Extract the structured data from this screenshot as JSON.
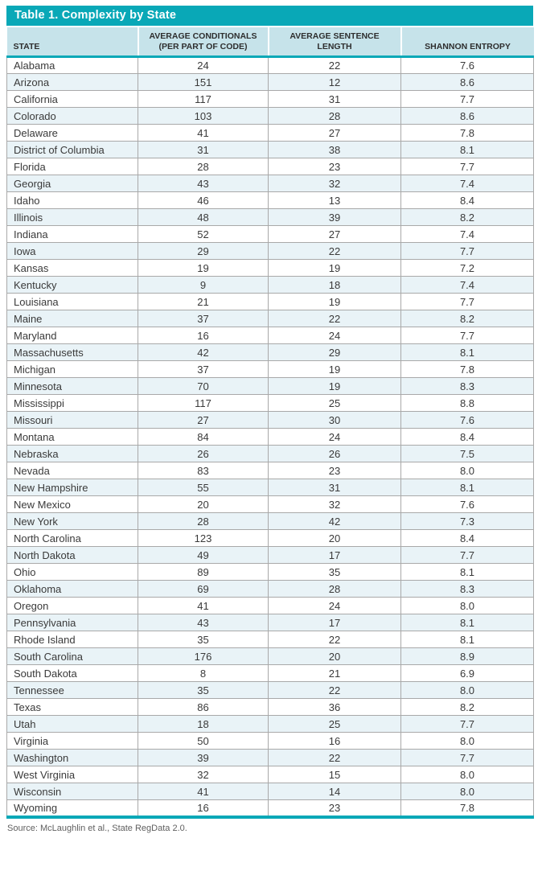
{
  "table": {
    "title": "Table 1. Complexity by State",
    "columns": [
      "STATE",
      "AVERAGE CONDITIONALS\n(PER PART OF CODE)",
      "AVERAGE SENTENCE LENGTH",
      "SHANNON ENTROPY"
    ],
    "rows": [
      {
        "state": "Alabama",
        "conditionals": "24",
        "sentence_length": "22",
        "entropy": "7.6"
      },
      {
        "state": "Arizona",
        "conditionals": "151",
        "sentence_length": "12",
        "entropy": "8.6"
      },
      {
        "state": "California",
        "conditionals": "117",
        "sentence_length": "31",
        "entropy": "7.7"
      },
      {
        "state": "Colorado",
        "conditionals": "103",
        "sentence_length": "28",
        "entropy": "8.6"
      },
      {
        "state": "Delaware",
        "conditionals": "41",
        "sentence_length": "27",
        "entropy": "7.8"
      },
      {
        "state": "District of Columbia",
        "conditionals": "31",
        "sentence_length": "38",
        "entropy": "8.1"
      },
      {
        "state": "Florida",
        "conditionals": "28",
        "sentence_length": "23",
        "entropy": "7.7"
      },
      {
        "state": "Georgia",
        "conditionals": "43",
        "sentence_length": "32",
        "entropy": "7.4"
      },
      {
        "state": "Idaho",
        "conditionals": "46",
        "sentence_length": "13",
        "entropy": "8.4"
      },
      {
        "state": "Illinois",
        "conditionals": "48",
        "sentence_length": "39",
        "entropy": "8.2"
      },
      {
        "state": "Indiana",
        "conditionals": "52",
        "sentence_length": "27",
        "entropy": "7.4"
      },
      {
        "state": "Iowa",
        "conditionals": "29",
        "sentence_length": "22",
        "entropy": "7.7"
      },
      {
        "state": "Kansas",
        "conditionals": "19",
        "sentence_length": "19",
        "entropy": "7.2"
      },
      {
        "state": "Kentucky",
        "conditionals": "9",
        "sentence_length": "18",
        "entropy": "7.4"
      },
      {
        "state": "Louisiana",
        "conditionals": "21",
        "sentence_length": "19",
        "entropy": "7.7"
      },
      {
        "state": "Maine",
        "conditionals": "37",
        "sentence_length": "22",
        "entropy": "8.2"
      },
      {
        "state": "Maryland",
        "conditionals": "16",
        "sentence_length": "24",
        "entropy": "7.7"
      },
      {
        "state": "Massachusetts",
        "conditionals": "42",
        "sentence_length": "29",
        "entropy": "8.1"
      },
      {
        "state": "Michigan",
        "conditionals": "37",
        "sentence_length": "19",
        "entropy": "7.8"
      },
      {
        "state": "Minnesota",
        "conditionals": "70",
        "sentence_length": "19",
        "entropy": "8.3"
      },
      {
        "state": "Mississippi",
        "conditionals": "117",
        "sentence_length": "25",
        "entropy": "8.8"
      },
      {
        "state": "Missouri",
        "conditionals": "27",
        "sentence_length": "30",
        "entropy": "7.6"
      },
      {
        "state": "Montana",
        "conditionals": "84",
        "sentence_length": "24",
        "entropy": "8.4"
      },
      {
        "state": "Nebraska",
        "conditionals": "26",
        "sentence_length": "26",
        "entropy": "7.5"
      },
      {
        "state": "Nevada",
        "conditionals": "83",
        "sentence_length": "23",
        "entropy": "8.0"
      },
      {
        "state": "New Hampshire",
        "conditionals": "55",
        "sentence_length": "31",
        "entropy": "8.1"
      },
      {
        "state": "New Mexico",
        "conditionals": "20",
        "sentence_length": "32",
        "entropy": "7.6"
      },
      {
        "state": "New York",
        "conditionals": "28",
        "sentence_length": "42",
        "entropy": "7.3"
      },
      {
        "state": "North Carolina",
        "conditionals": "123",
        "sentence_length": "20",
        "entropy": "8.4"
      },
      {
        "state": "North Dakota",
        "conditionals": "49",
        "sentence_length": "17",
        "entropy": "7.7"
      },
      {
        "state": "Ohio",
        "conditionals": "89",
        "sentence_length": "35",
        "entropy": "8.1"
      },
      {
        "state": "Oklahoma",
        "conditionals": "69",
        "sentence_length": "28",
        "entropy": "8.3"
      },
      {
        "state": "Oregon",
        "conditionals": "41",
        "sentence_length": "24",
        "entropy": "8.0"
      },
      {
        "state": "Pennsylvania",
        "conditionals": "43",
        "sentence_length": "17",
        "entropy": "8.1"
      },
      {
        "state": "Rhode Island",
        "conditionals": "35",
        "sentence_length": "22",
        "entropy": "8.1"
      },
      {
        "state": "South Carolina",
        "conditionals": "176",
        "sentence_length": "20",
        "entropy": "8.9"
      },
      {
        "state": "South Dakota",
        "conditionals": "8",
        "sentence_length": "21",
        "entropy": "6.9"
      },
      {
        "state": "Tennessee",
        "conditionals": "35",
        "sentence_length": "22",
        "entropy": "8.0"
      },
      {
        "state": "Texas",
        "conditionals": "86",
        "sentence_length": "36",
        "entropy": "8.2"
      },
      {
        "state": "Utah",
        "conditionals": "18",
        "sentence_length": "25",
        "entropy": "7.7"
      },
      {
        "state": "Virginia",
        "conditionals": "50",
        "sentence_length": "16",
        "entropy": "8.0"
      },
      {
        "state": "Washington",
        "conditionals": "39",
        "sentence_length": "22",
        "entropy": "7.7"
      },
      {
        "state": "West Virginia",
        "conditionals": "32",
        "sentence_length": "15",
        "entropy": "8.0"
      },
      {
        "state": "Wisconsin",
        "conditionals": "41",
        "sentence_length": "14",
        "entropy": "8.0"
      },
      {
        "state": "Wyoming",
        "conditionals": "16",
        "sentence_length": "23",
        "entropy": "7.8"
      }
    ]
  },
  "source": "Source: McLaughlin et al., State RegData 2.0.",
  "colors": {
    "accent_teal": "#09A8B7",
    "header_bg": "#C6E3EA",
    "alt_row_bg": "#E9F3F7",
    "border_gray": "#A9A9A9",
    "body_text": "#3A3A3A",
    "source_text": "#5F5F5F"
  },
  "chart_data": {
    "type": "table",
    "title": "Table 1. Complexity by State",
    "columns": [
      "State",
      "Average Conditionals (per Part of Code)",
      "Average Sentence Length",
      "Shannon Entropy"
    ],
    "categories": [
      "Alabama",
      "Arizona",
      "California",
      "Colorado",
      "Delaware",
      "District of Columbia",
      "Florida",
      "Georgia",
      "Idaho",
      "Illinois",
      "Indiana",
      "Iowa",
      "Kansas",
      "Kentucky",
      "Louisiana",
      "Maine",
      "Maryland",
      "Massachusetts",
      "Michigan",
      "Minnesota",
      "Mississippi",
      "Missouri",
      "Montana",
      "Nebraska",
      "Nevada",
      "New Hampshire",
      "New Mexico",
      "New York",
      "North Carolina",
      "North Dakota",
      "Ohio",
      "Oklahoma",
      "Oregon",
      "Pennsylvania",
      "Rhode Island",
      "South Carolina",
      "South Dakota",
      "Tennessee",
      "Texas",
      "Utah",
      "Virginia",
      "Washington",
      "West Virginia",
      "Wisconsin",
      "Wyoming"
    ],
    "series": [
      {
        "name": "Average Conditionals (per Part of Code)",
        "values": [
          24,
          151,
          117,
          103,
          41,
          31,
          28,
          43,
          46,
          48,
          52,
          29,
          19,
          9,
          21,
          37,
          16,
          42,
          37,
          70,
          117,
          27,
          84,
          26,
          83,
          55,
          20,
          28,
          123,
          49,
          89,
          69,
          41,
          43,
          35,
          176,
          8,
          35,
          86,
          18,
          50,
          39,
          32,
          41,
          16
        ]
      },
      {
        "name": "Average Sentence Length",
        "values": [
          22,
          12,
          31,
          28,
          27,
          38,
          23,
          32,
          13,
          39,
          27,
          22,
          19,
          18,
          19,
          22,
          24,
          29,
          19,
          19,
          25,
          30,
          24,
          26,
          23,
          31,
          32,
          42,
          20,
          17,
          35,
          28,
          24,
          17,
          22,
          20,
          21,
          22,
          36,
          25,
          16,
          22,
          15,
          14,
          23
        ]
      },
      {
        "name": "Shannon Entropy",
        "values": [
          7.6,
          8.6,
          7.7,
          8.6,
          7.8,
          8.1,
          7.7,
          7.4,
          8.4,
          8.2,
          7.4,
          7.7,
          7.2,
          7.4,
          7.7,
          8.2,
          7.7,
          8.1,
          7.8,
          8.3,
          8.8,
          7.6,
          8.4,
          7.5,
          8.0,
          8.1,
          7.6,
          7.3,
          8.4,
          7.7,
          8.1,
          8.3,
          8.0,
          8.1,
          8.1,
          8.9,
          6.9,
          8.0,
          8.2,
          7.7,
          8.0,
          7.7,
          8.0,
          8.0,
          7.8
        ]
      }
    ]
  }
}
